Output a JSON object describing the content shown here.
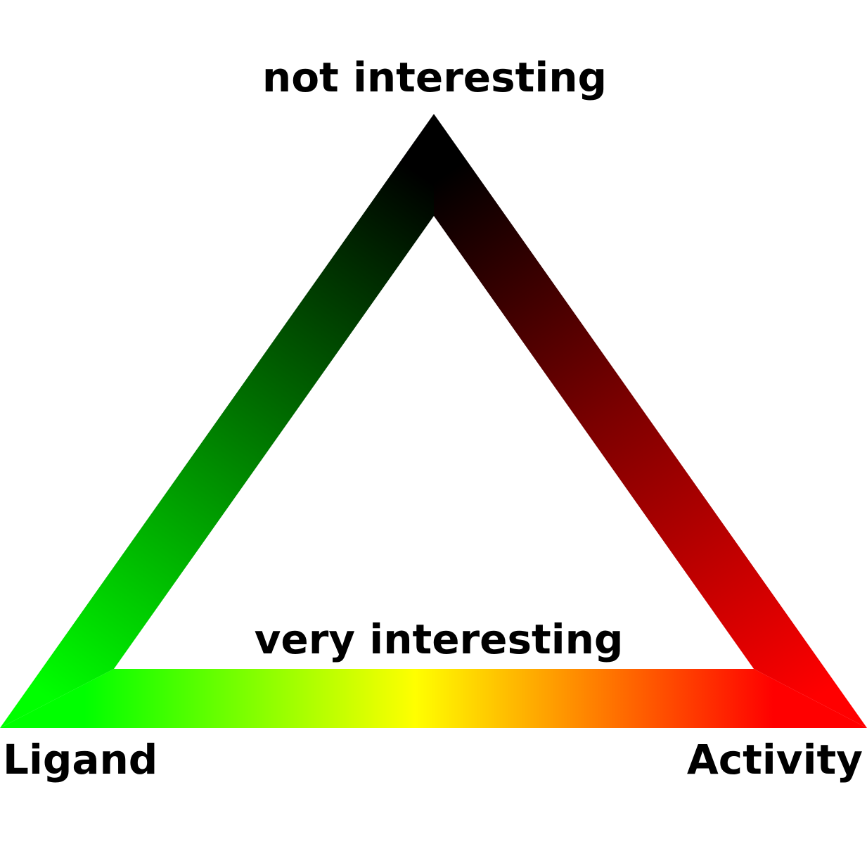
{
  "labels": {
    "top": "not interesting",
    "center": "very interesting",
    "bottom_left": "Ligand",
    "bottom_right": "Activity"
  },
  "colors": {
    "top_vertex": "#000000",
    "left_vertex": "#00ff00",
    "right_vertex": "#ff0000",
    "bottom_mid": "#ffff00",
    "left_mid": "#007000",
    "right_mid": "#7a0000",
    "background": "#ffffff",
    "text": "#000000"
  }
}
